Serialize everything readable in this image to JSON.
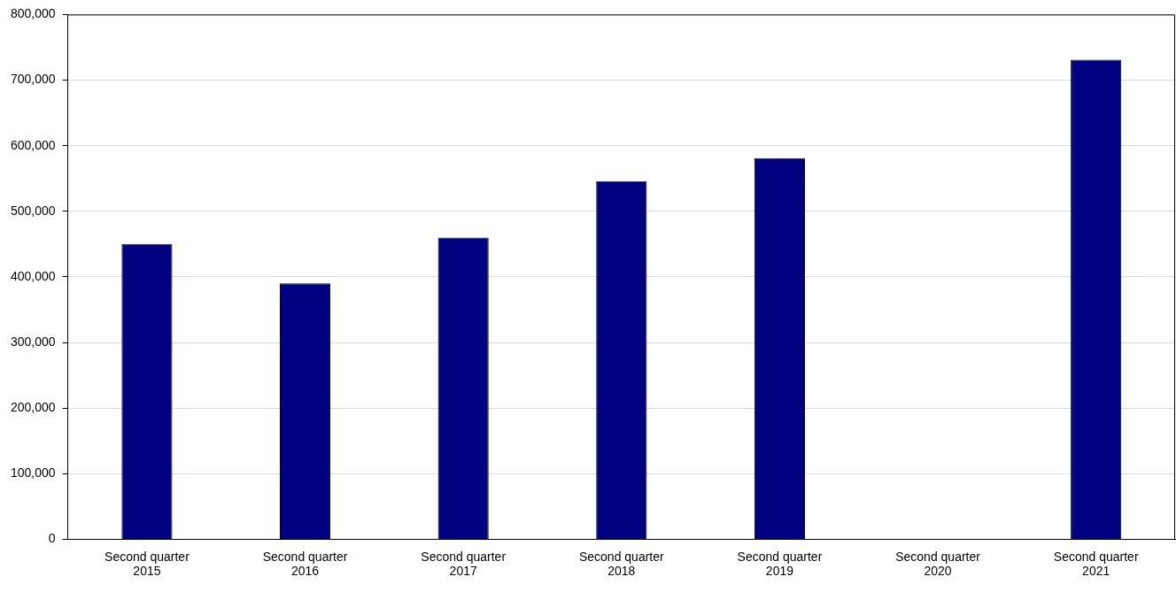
{
  "chart_data": {
    "type": "bar",
    "categories": [
      "Second quarter 2015",
      "Second quarter 2016",
      "Second quarter 2017",
      "Second quarter 2018",
      "Second quarter 2019",
      "Second quarter 2020",
      "Second quarter 2021"
    ],
    "values": [
      450000,
      390000,
      460000,
      546000,
      581000,
      null,
      731000
    ],
    "color": "#000080",
    "ylim": [
      0,
      800000
    ],
    "yticks": [
      0,
      {
        "value": 100000,
        "label": "100,000"
      },
      {
        "value": 200000,
        "label": "200,000"
      },
      {
        "value": 300000,
        "label": "300,000"
      },
      {
        "value": 400000,
        "label": "400,000"
      },
      {
        "value": 500000,
        "label": "500,000"
      },
      {
        "value": 600000,
        "label": "600,000"
      },
      {
        "value": 700000,
        "label": "700,000"
      },
      {
        "value": 800000,
        "label": "800,000"
      }
    ],
    "grid": "y"
  }
}
